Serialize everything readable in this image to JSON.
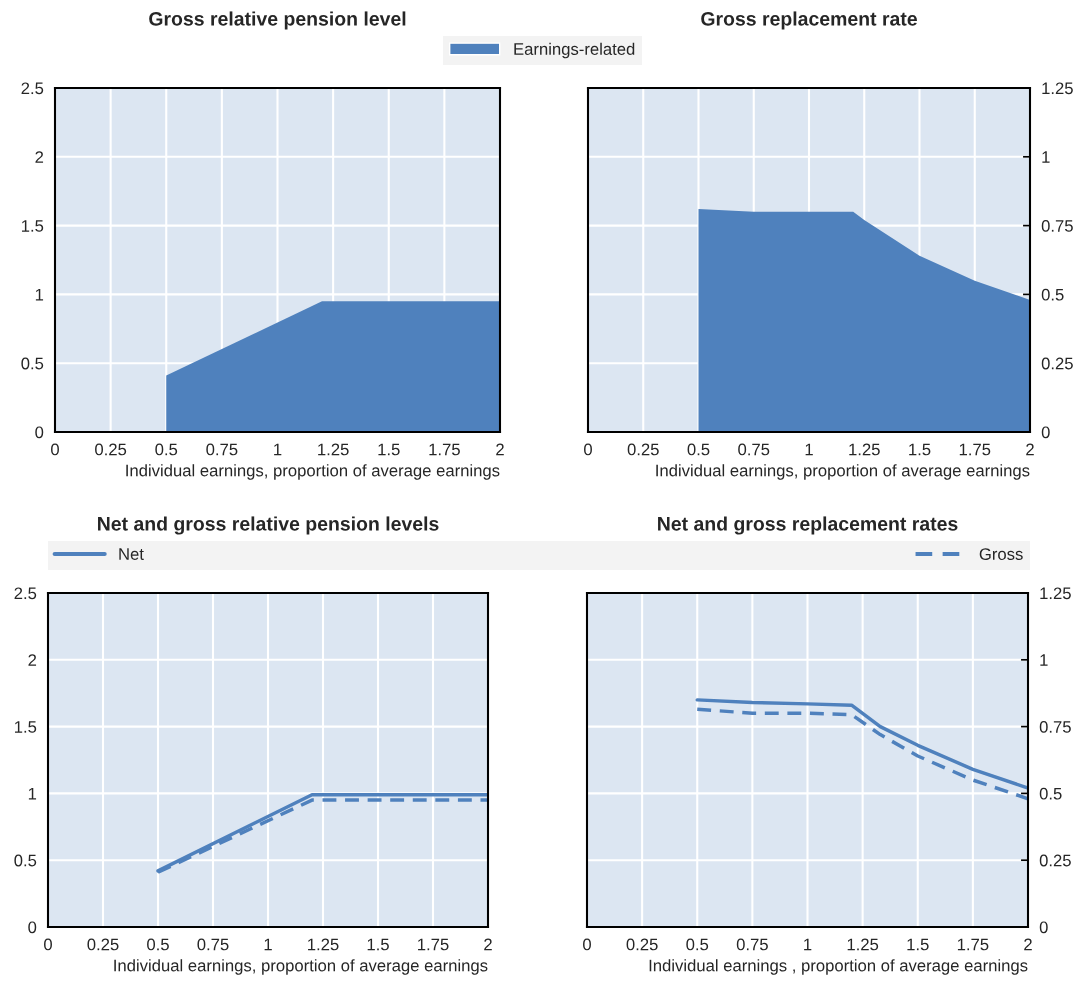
{
  "chart_data": [
    {
      "type": "area",
      "title": "Gross relative pension level",
      "xlabel": "Individual earnings, proportion of average earnings",
      "xlim": [
        0,
        2
      ],
      "xticks": [
        0,
        0.25,
        0.5,
        0.75,
        1,
        1.25,
        1.5,
        1.75,
        2
      ],
      "ylim": [
        0,
        2.5
      ],
      "yticks": [
        0,
        0.5,
        1,
        1.5,
        2,
        2.5
      ],
      "grid": true,
      "legend": "top",
      "series": [
        {
          "name": "Earnings-related",
          "color": "#4f81bd",
          "x": [
            0.5,
            0.5,
            1.2,
            2
          ],
          "values": [
            0,
            0.41,
            0.95,
            0.95
          ]
        }
      ]
    },
    {
      "type": "area",
      "title": "Gross replacement rate",
      "xlabel": "Individual earnings, proportion of average earnings",
      "xlim": [
        0,
        2
      ],
      "xticks": [
        0,
        0.25,
        0.5,
        0.75,
        1,
        1.25,
        1.5,
        1.75,
        2
      ],
      "ylim": [
        0,
        1.25
      ],
      "yticks": [
        0,
        0.25,
        0.5,
        0.75,
        1,
        1.25
      ],
      "grid": true,
      "series": [
        {
          "color": "#4f81bd",
          "x": [
            0.5,
            0.5,
            0.75,
            1,
            1.2,
            1.25,
            1.5,
            1.75,
            2
          ],
          "values": [
            0,
            0.81,
            0.8,
            0.8,
            0.8,
            0.77,
            0.64,
            0.55,
            0.48
          ]
        }
      ]
    },
    {
      "type": "line",
      "title": "Net and gross relative pension levels",
      "xlabel": "Individual earnings, proportion of average earnings",
      "xlim": [
        0,
        2
      ],
      "xticks": [
        0,
        0.25,
        0.5,
        0.75,
        1,
        1.25,
        1.5,
        1.75,
        2
      ],
      "ylim": [
        0,
        2.5
      ],
      "yticks": [
        0,
        0.5,
        1,
        1.5,
        2,
        2.5
      ],
      "grid": true,
      "legend": "top",
      "series": [
        {
          "name": "Net",
          "color": "#4f81bd",
          "line_style": "solid",
          "x": [
            0.5,
            1.2,
            2
          ],
          "values": [
            0.42,
            0.99,
            0.99
          ]
        },
        {
          "name": "Gross",
          "color": "#4f81bd",
          "line_style": "dashed",
          "x": [
            0.5,
            1.2,
            2
          ],
          "values": [
            0.41,
            0.95,
            0.95
          ]
        }
      ]
    },
    {
      "type": "line",
      "title": "Net and gross replacement rates",
      "xlabel": "Individual earnings , proportion of average earnings",
      "xlim": [
        0,
        2
      ],
      "xticks": [
        0,
        0.25,
        0.5,
        0.75,
        1,
        1.25,
        1.5,
        1.75,
        2
      ],
      "ylim": [
        0,
        1.25
      ],
      "yticks": [
        0,
        0.25,
        0.5,
        0.75,
        1,
        1.25
      ],
      "grid": true,
      "series": [
        {
          "color": "#4f81bd",
          "line_style": "solid",
          "x": [
            0.5,
            0.75,
            1,
            1.2,
            1.33,
            1.5,
            1.75,
            2
          ],
          "values": [
            0.85,
            0.84,
            0.835,
            0.83,
            0.75,
            0.68,
            0.59,
            0.52
          ]
        },
        {
          "color": "#4f81bd",
          "line_style": "dashed",
          "x": [
            0.5,
            0.75,
            1,
            1.2,
            1.33,
            1.5,
            1.75,
            2
          ],
          "values": [
            0.815,
            0.8,
            0.8,
            0.795,
            0.72,
            0.64,
            0.55,
            0.48
          ]
        }
      ]
    }
  ]
}
